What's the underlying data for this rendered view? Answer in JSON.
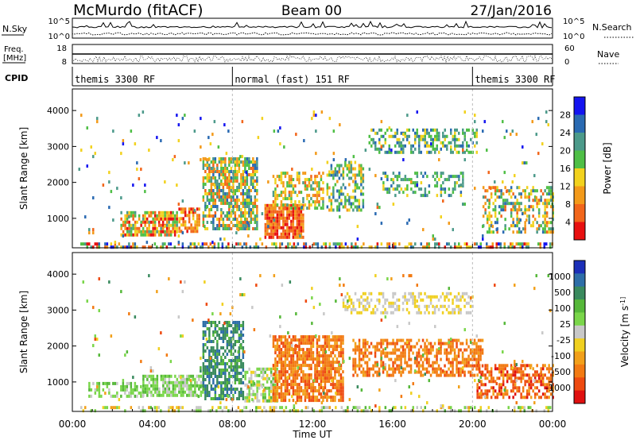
{
  "header": {
    "station": "McMurdo (fitACF)",
    "beam": "Beam 00",
    "date": "27/Jan/2016"
  },
  "status_panels": {
    "nsky_label": "N.Sky",
    "nsky_ticks": [
      "10^5",
      "10^0"
    ],
    "nsearch_label": "N.Search",
    "nsearch_ticks": [
      "10^5",
      "10^0"
    ],
    "freq_label": [
      "Freq.",
      "[MHz]"
    ],
    "freq_ticks": [
      "18",
      "8"
    ],
    "nave_label": "Nave",
    "nave_ticks": [
      "60",
      "0"
    ],
    "cpid_label": "CPID",
    "cpid_segments": [
      {
        "label": "themis 3300 RF",
        "start_hour": 0,
        "end_hour": 8
      },
      {
        "label": "normal (fast) 151 RF",
        "start_hour": 8,
        "end_hour": 20
      },
      {
        "label": "themis 3300 RF",
        "start_hour": 20,
        "end_hour": 24
      }
    ]
  },
  "chart_data": [
    {
      "type": "heatmap",
      "title": "",
      "xlabel": "",
      "ylabel": "Slant Range [km]",
      "xlim": [
        0,
        24
      ],
      "ylim": [
        180,
        4600
      ],
      "yticks": [
        "1000",
        "2000",
        "3000",
        "4000"
      ],
      "colorbar": {
        "label": "Power [dB]",
        "ticks": [
          "4",
          "8",
          "12",
          "16",
          "20",
          "24",
          "28"
        ],
        "colors": [
          "#1414f0",
          "#2a6ab2",
          "#4c9a8a",
          "#4fbf46",
          "#f2d21e",
          "#f39a1a",
          "#f2661b",
          "#e81010"
        ]
      },
      "features": [
        {
          "t0": 0.3,
          "t1": 24,
          "r0": 190,
          "r1": 330,
          "density": 0.5,
          "level": [
            0,
            7
          ]
        },
        {
          "t0": 2.4,
          "t1": 5.2,
          "r0": 500,
          "r1": 1200,
          "density": 0.75,
          "level": [
            2,
            7
          ]
        },
        {
          "t0": 5.3,
          "t1": 6.3,
          "r0": 600,
          "r1": 1300,
          "density": 0.6,
          "level": [
            4,
            7
          ]
        },
        {
          "t0": 6.5,
          "t1": 9.2,
          "r0": 700,
          "r1": 2700,
          "density": 0.7,
          "level": [
            1,
            6
          ]
        },
        {
          "t0": 9.6,
          "t1": 11.5,
          "r0": 500,
          "r1": 1400,
          "density": 0.85,
          "level": [
            5,
            7
          ]
        },
        {
          "t0": 10,
          "t1": 12.5,
          "r0": 1300,
          "r1": 2300,
          "density": 0.55,
          "level": [
            2,
            6
          ]
        },
        {
          "t0": 12.7,
          "t1": 14.5,
          "r0": 1200,
          "r1": 2600,
          "density": 0.5,
          "level": [
            1,
            5
          ]
        },
        {
          "t0": 14.8,
          "t1": 20.2,
          "r0": 2800,
          "r1": 3500,
          "density": 0.45,
          "level": [
            1,
            4
          ]
        },
        {
          "t0": 15.5,
          "t1": 19.5,
          "r0": 1600,
          "r1": 2300,
          "density": 0.35,
          "level": [
            1,
            4
          ]
        },
        {
          "t0": 20.5,
          "t1": 24,
          "r0": 600,
          "r1": 1900,
          "density": 0.45,
          "level": [
            1,
            6
          ]
        },
        {
          "t0": 0.3,
          "t1": 24,
          "r0": 300,
          "r1": 4000,
          "density": 0.02,
          "level": [
            0,
            6
          ]
        }
      ]
    },
    {
      "type": "heatmap",
      "title": "",
      "xlabel": "Time UT",
      "ylabel": "Slant Range [km]",
      "xlim": [
        0,
        24
      ],
      "ylim": [
        180,
        4600
      ],
      "yticks": [
        "1000",
        "2000",
        "3000",
        "4000"
      ],
      "xticks": [
        "00:00",
        "04:00",
        "08:00",
        "12:00",
        "16:00",
        "20:00",
        "00:00"
      ],
      "colorbar": {
        "label": "Velocity [m s^-1]",
        "ticks": [
          "1000",
          "500",
          "100",
          "25",
          "-25",
          "-100",
          "-500",
          "-1000"
        ],
        "colors": [
          "#1c2fb8",
          "#2e6ea8",
          "#3a8a5e",
          "#56b83a",
          "#7ad64a",
          "#c8c8c8",
          "#f0d020",
          "#f2a01a",
          "#f27a12",
          "#ee4a10",
          "#e01010"
        ]
      },
      "features": [
        {
          "t0": 0.3,
          "t1": 24,
          "r0": 190,
          "r1": 330,
          "density": 0.35,
          "level": [
            3,
            7
          ]
        },
        {
          "t0": 0.8,
          "t1": 3.5,
          "r0": 600,
          "r1": 1000,
          "density": 0.5,
          "level": [
            3,
            5
          ]
        },
        {
          "t0": 3.5,
          "t1": 6.5,
          "r0": 600,
          "r1": 1200,
          "density": 0.8,
          "level": [
            3,
            5
          ]
        },
        {
          "t0": 6.5,
          "t1": 8.5,
          "r0": 500,
          "r1": 2700,
          "density": 0.65,
          "level": [
            1,
            3
          ]
        },
        {
          "t0": 8.6,
          "t1": 10.2,
          "r0": 500,
          "r1": 1400,
          "density": 0.6,
          "level": [
            3,
            6
          ]
        },
        {
          "t0": 10,
          "t1": 13.5,
          "r0": 500,
          "r1": 2300,
          "density": 0.75,
          "level": [
            7,
            9
          ]
        },
        {
          "t0": 13.5,
          "t1": 20,
          "r0": 2900,
          "r1": 3500,
          "density": 0.4,
          "level": [
            5,
            6
          ]
        },
        {
          "t0": 14,
          "t1": 20.5,
          "r0": 1200,
          "r1": 2200,
          "density": 0.55,
          "level": [
            7,
            9
          ]
        },
        {
          "t0": 20.2,
          "t1": 24,
          "r0": 600,
          "r1": 1500,
          "density": 0.55,
          "level": [
            7,
            10
          ]
        },
        {
          "t0": 0.3,
          "t1": 24,
          "r0": 300,
          "r1": 4000,
          "density": 0.02,
          "level": [
            2,
            9
          ]
        }
      ]
    }
  ]
}
